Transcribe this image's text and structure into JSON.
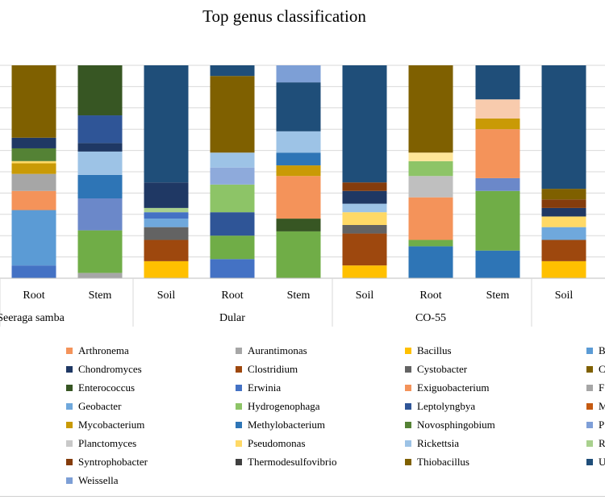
{
  "chart_data": {
    "type": "stacked-bar-100",
    "title": "Top genus classification",
    "ylim": [
      0,
      100
    ],
    "grid": true,
    "legend_position": "bottom",
    "group_labels": [
      "Seeraga samba",
      "Dular",
      "CO-55",
      ""
    ],
    "shown_group_labels": [
      "Seeraga samba",
      "Dular",
      "CO-55"
    ],
    "categories": [
      "Root",
      "Stem",
      "Soil",
      "Root",
      "Stem",
      "Soil",
      "Root",
      "Stem",
      "Soil"
    ],
    "category_groups": [
      0,
      0,
      1,
      1,
      1,
      2,
      2,
      2,
      3
    ],
    "legend_entries": [
      {
        "name": "Arthronema",
        "color": "#f4935a"
      },
      {
        "name": "Aurantimonas",
        "color": "#a6a6a6"
      },
      {
        "name": "Bacillus",
        "color": "#ffc000"
      },
      {
        "name": "B",
        "color": "#5b9bd5"
      },
      {
        "name": "Chondromyces",
        "color": "#1f3864"
      },
      {
        "name": "Clostridium",
        "color": "#9e480e"
      },
      {
        "name": "Cystobacter",
        "color": "#636363"
      },
      {
        "name": "C",
        "color": "#7f6000"
      },
      {
        "name": "Enterococcus",
        "color": "#375623"
      },
      {
        "name": "Erwinia",
        "color": "#4472c4"
      },
      {
        "name": "Exiguobacterium",
        "color": "#f4935a"
      },
      {
        "name": "F",
        "color": "#a6a6a6"
      },
      {
        "name": "Geobacter",
        "color": "#6fa8dc"
      },
      {
        "name": "Hydrogenophaga",
        "color": "#8dc467"
      },
      {
        "name": "Leptolyngbya",
        "color": "#2f5597"
      },
      {
        "name": "M",
        "color": "#c55a11"
      },
      {
        "name": "Mycobacterium",
        "color": "#c99a06"
      },
      {
        "name": "Methylobacterium",
        "color": "#2e75b6"
      },
      {
        "name": "Novosphingobium",
        "color": "#548235"
      },
      {
        "name": "P",
        "color": "#7f9fd8"
      },
      {
        "name": "Planctomyces",
        "color": "#c9c9c9"
      },
      {
        "name": "Pseudomonas",
        "color": "#ffd966"
      },
      {
        "name": "Rickettsia",
        "color": "#9dc3e6"
      },
      {
        "name": "R",
        "color": "#a9d18e"
      },
      {
        "name": "Syntrophobacter",
        "color": "#843c0c"
      },
      {
        "name": "Thermodesulfovibrio",
        "color": "#404040"
      },
      {
        "name": "Thiobacillus",
        "color": "#7f6000"
      },
      {
        "name": "U",
        "color": "#1f4e79"
      },
      {
        "name": "Weissella",
        "color": "#7d9fd6"
      }
    ],
    "bars": [
      {
        "category": "Root",
        "group": "Seeraga samba",
        "stack": [
          {
            "color": "#4472c4",
            "value": 6
          },
          {
            "color": "#5b9bd5",
            "value": 26
          },
          {
            "color": "#f4935a",
            "value": 9
          },
          {
            "color": "#a6a6a6",
            "value": 8
          },
          {
            "color": "#c99a06",
            "value": 5
          },
          {
            "color": "#ffd966",
            "value": 1
          },
          {
            "color": "#548235",
            "value": 6
          },
          {
            "color": "#1f3864",
            "value": 5
          },
          {
            "color": "#7f6000",
            "value": 34
          }
        ]
      },
      {
        "category": "Stem",
        "group": "Seeraga samba",
        "stack": [
          {
            "color": "#a6a6a6",
            "value": 2.5
          },
          {
            "color": "#70ad47",
            "value": 20
          },
          {
            "color": "#6b88c9",
            "value": 15
          },
          {
            "color": "#2e75b6",
            "value": 11
          },
          {
            "color": "#9dc3e6",
            "value": 11
          },
          {
            "color": "#1f3864",
            "value": 4
          },
          {
            "color": "#2f5597",
            "value": 13
          },
          {
            "color": "#375623",
            "value": 23.5
          }
        ]
      },
      {
        "category": "Soil",
        "group": "Dular",
        "stack": [
          {
            "color": "#ffc000",
            "value": 8
          },
          {
            "color": "#9e480e",
            "value": 10
          },
          {
            "color": "#636363",
            "value": 6
          },
          {
            "color": "#6fa8dc",
            "value": 4
          },
          {
            "color": "#4472c4",
            "value": 3
          },
          {
            "color": "#a9d18e",
            "value": 2
          },
          {
            "color": "#1f3864",
            "value": 12
          },
          {
            "color": "#1f4e79",
            "value": 55
          }
        ]
      },
      {
        "category": "Root",
        "group": "Dular",
        "stack": [
          {
            "color": "#4472c4",
            "value": 9
          },
          {
            "color": "#70ad47",
            "value": 11
          },
          {
            "color": "#2f5597",
            "value": 11
          },
          {
            "color": "#8dc467",
            "value": 13
          },
          {
            "color": "#8eaadb",
            "value": 8
          },
          {
            "color": "#9dc3e6",
            "value": 7
          },
          {
            "color": "#7f6000",
            "value": 36
          },
          {
            "color": "#1f4e79",
            "value": 5
          }
        ]
      },
      {
        "category": "Stem",
        "group": "Dular",
        "stack": [
          {
            "color": "#70ad47",
            "value": 22
          },
          {
            "color": "#375623",
            "value": 6
          },
          {
            "color": "#f4935a",
            "value": 20
          },
          {
            "color": "#c99a06",
            "value": 5
          },
          {
            "color": "#2e75b6",
            "value": 6
          },
          {
            "color": "#9dc3e6",
            "value": 10
          },
          {
            "color": "#1f4e79",
            "value": 23
          },
          {
            "color": "#7d9fd6",
            "value": 8
          }
        ]
      },
      {
        "category": "Soil",
        "group": "CO-55",
        "stack": [
          {
            "color": "#ffc000",
            "value": 6
          },
          {
            "color": "#9e480e",
            "value": 15
          },
          {
            "color": "#636363",
            "value": 4
          },
          {
            "color": "#ffd966",
            "value": 6
          },
          {
            "color": "#9dc3e6",
            "value": 4
          },
          {
            "color": "#1f3864",
            "value": 6
          },
          {
            "color": "#843c0c",
            "value": 4
          },
          {
            "color": "#1f4e79",
            "value": 55
          }
        ]
      },
      {
        "category": "Root",
        "group": "CO-55",
        "stack": [
          {
            "color": "#2e75b6",
            "value": 15
          },
          {
            "color": "#70ad47",
            "value": 3
          },
          {
            "color": "#f4935a",
            "value": 20
          },
          {
            "color": "#bfbfbf",
            "value": 10
          },
          {
            "color": "#8dc467",
            "value": 7
          },
          {
            "color": "#ffe699",
            "value": 4
          },
          {
            "color": "#7f6000",
            "value": 41
          }
        ]
      },
      {
        "category": "Stem",
        "group": "CO-55",
        "stack": [
          {
            "color": "#2e75b6",
            "value": 13
          },
          {
            "color": "#70ad47",
            "value": 28
          },
          {
            "color": "#6b88c9",
            "value": 6
          },
          {
            "color": "#f4935a",
            "value": 23
          },
          {
            "color": "#c99a06",
            "value": 5
          },
          {
            "color": "#f8cbad",
            "value": 9
          },
          {
            "color": "#1f4e79",
            "value": 16
          }
        ]
      },
      {
        "category": "Soil",
        "group": "",
        "stack": [
          {
            "color": "#ffc000",
            "value": 8
          },
          {
            "color": "#9e480e",
            "value": 10
          },
          {
            "color": "#6fa8dc",
            "value": 6
          },
          {
            "color": "#ffd966",
            "value": 5
          },
          {
            "color": "#1f3864",
            "value": 4
          },
          {
            "color": "#843c0c",
            "value": 4
          },
          {
            "color": "#7f6000",
            "value": 5
          },
          {
            "color": "#1f4e79",
            "value": 58
          }
        ]
      }
    ]
  }
}
